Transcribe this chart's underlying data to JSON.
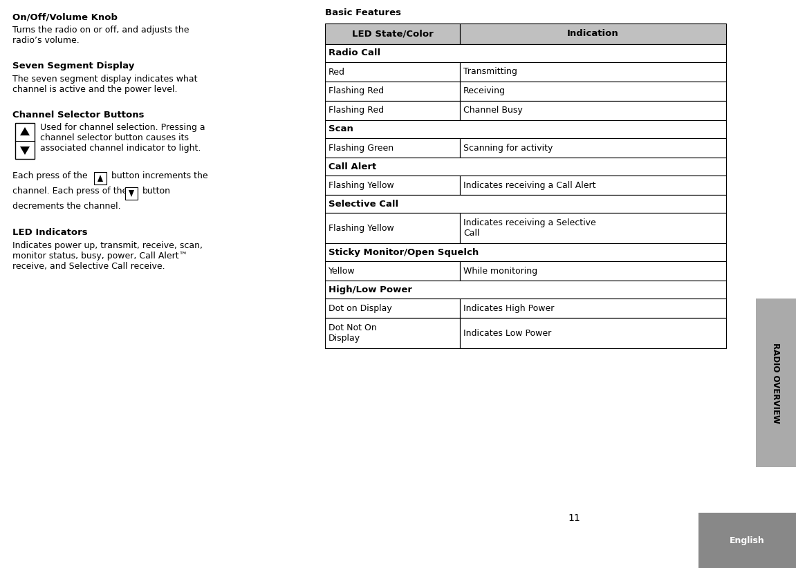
{
  "page_num": "11",
  "sidebar_text": "RADIO OVERVIEW",
  "sidebar_bg": "#aaaaaa",
  "sidebar_text_color": "#000000",
  "bottom_tab_text": "English",
  "bottom_tab_bg": "#888888",
  "bg_color": "#ffffff",
  "text_color": "#000000",
  "table_title": "Basic Features",
  "table_header": [
    "LED State/Color",
    "Indication"
  ],
  "table_rows": [
    {
      "type": "section",
      "text": "Radio Call"
    },
    {
      "type": "data",
      "col1": "Red",
      "col2": "Transmitting"
    },
    {
      "type": "data",
      "col1": "Flashing Red",
      "col2": "Receiving"
    },
    {
      "type": "data",
      "col1": "Flashing Red",
      "col2": "Channel Busy"
    },
    {
      "type": "section",
      "text": "Scan"
    },
    {
      "type": "data",
      "col1": "Flashing Green",
      "col2": "Scanning for activity"
    },
    {
      "type": "section",
      "text": "Call Alert"
    },
    {
      "type": "data",
      "col1": "Flashing Yellow",
      "col2": "Indicates receiving a Call Alert"
    },
    {
      "type": "section",
      "text": "Selective Call"
    },
    {
      "type": "data",
      "col1": "Flashing Yellow",
      "col2": "Indicates receiving a Selective\nCall"
    },
    {
      "type": "section",
      "text": "Sticky Monitor/Open Squelch"
    },
    {
      "type": "data",
      "col1": "Yellow",
      "col2": "While monitoring"
    },
    {
      "type": "section",
      "text": "High/Low Power"
    },
    {
      "type": "data",
      "col1": "Dot on Display",
      "col2": "Indicates High Power"
    },
    {
      "type": "data",
      "col1": "Dot Not On\nDisplay",
      "col2": "Indicates Low Power"
    }
  ],
  "left_sections": [
    {
      "heading": "On/Off/Volume Knob",
      "body": "Turns the radio on or off, and adjusts the\nradio’s volume."
    },
    {
      "heading": "Seven Segment Display",
      "body": "The seven segment display indicates what\nchannel is active and the power level."
    },
    {
      "heading": "Channel Selector Buttons",
      "icon_body": "Used for channel selection. Pressing a\nchannel selector button causes its\nassociated channel indicator to light.",
      "inline_body": "Each press of the    button increments the\nchannel. Each press of the    button\ndecrements the channel."
    },
    {
      "heading": "LED Indicators",
      "body": "Indicates power up, transmit, receive, scan,\nmonitor status, busy, power, Call Alert™\nreceive, and Selective Call receive."
    }
  ]
}
